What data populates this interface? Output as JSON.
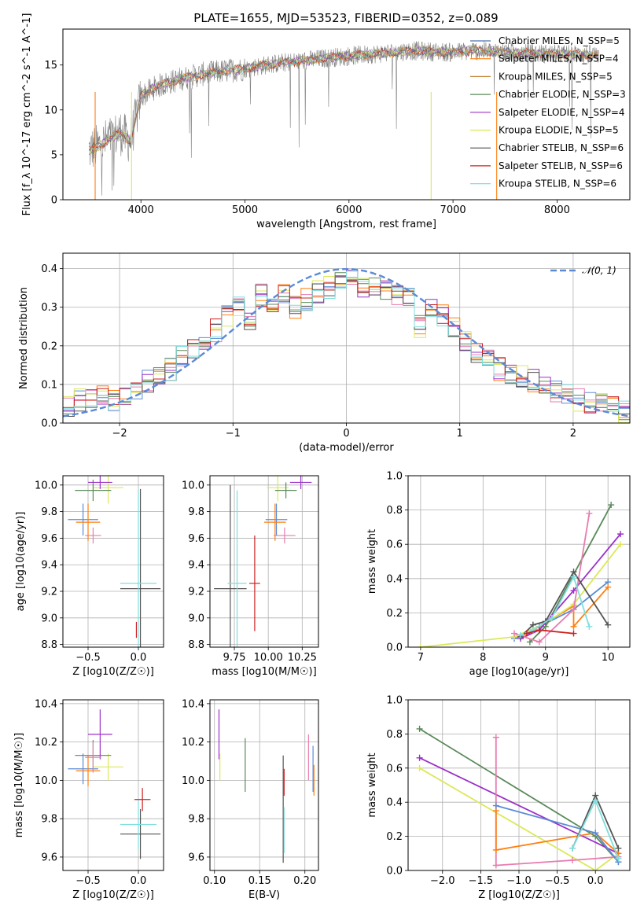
{
  "chart_data": [
    {
      "type": "line",
      "title": "PLATE=1655, MJD=53523, FIBERID=0352, z=0.089",
      "xlabel": "wavelength [Angstrom, rest frame]",
      "ylabel": "Flux [f_λ 10^-17 erg cm^-2 s^-1 A^-1]",
      "xlim": [
        3250,
        8700
      ],
      "ylim": [
        0,
        19
      ],
      "xticks": [
        4000,
        5000,
        6000,
        7000,
        8000
      ],
      "yticks": [
        0,
        5,
        10,
        15
      ],
      "legend_position": "top-right",
      "observed_spectrum": {
        "color": "#808080",
        "x": [
          3500,
          3600,
          3700,
          3800,
          3900,
          4000,
          4100,
          4200,
          4400,
          4600,
          4800,
          5000,
          5200,
          5400,
          5600,
          5800,
          6000,
          6200,
          6400,
          6600,
          6800,
          7000,
          7200,
          7400,
          7600,
          7800,
          8000,
          8200,
          8400
        ],
        "y": [
          5.5,
          6.0,
          6.8,
          7.5,
          6.5,
          11.5,
          12.3,
          12.8,
          13.5,
          14.0,
          14.3,
          14.6,
          15.0,
          15.3,
          15.5,
          15.8,
          16.0,
          16.2,
          16.4,
          16.6,
          16.5,
          16.4,
          16.6,
          16.5,
          16.4,
          16.3,
          16.2,
          16.2,
          16.1
        ]
      },
      "series": [
        {
          "name": "Chabrier MILES, N_SSP=5",
          "n_ssp": 5,
          "color": "#4c72b0"
        },
        {
          "name": "Salpeter MILES, N_SSP=4",
          "n_ssp": 4,
          "color": "#ff7f0e"
        },
        {
          "name": "Kroupa MILES, N_SSP=5",
          "n_ssp": 5,
          "color": "#c08030"
        },
        {
          "name": "Chabrier ELODIE, N_SSP=3",
          "n_ssp": 3,
          "color": "#5a8a5a"
        },
        {
          "name": "Salpeter ELODIE, N_SSP=4",
          "n_ssp": 4,
          "color": "#9b30c8"
        },
        {
          "name": "Kroupa ELODIE, N_SSP=5",
          "n_ssp": 5,
          "color": "#dce85a"
        },
        {
          "name": "Chabrier STELIB, N_SSP=6",
          "n_ssp": 6,
          "color": "#555555"
        },
        {
          "name": "Salpeter STELIB, N_SSP=6",
          "n_ssp": 6,
          "color": "#cc2020"
        },
        {
          "name": "Kroupa STELIB, N_SSP=6",
          "n_ssp": 6,
          "color": "#7fdede"
        }
      ]
    },
    {
      "type": "line",
      "xlabel": "(data-model)/error",
      "ylabel": "Normed distribution",
      "xlim": [
        -2.5,
        2.5
      ],
      "ylim": [
        0,
        0.44
      ],
      "xticks": [
        -2,
        -1,
        0,
        1,
        2
      ],
      "yticks": [
        0.0,
        0.1,
        0.2,
        0.3,
        0.4
      ],
      "legend_position": "top-right",
      "gaussian_label": "𝒩(0, 1)",
      "gaussian_color": "#5b8bd6",
      "bin_centers": [
        -2.45,
        -2.35,
        -2.25,
        -2.15,
        -2.05,
        -1.95,
        -1.85,
        -1.75,
        -1.65,
        -1.55,
        -1.45,
        -1.35,
        -1.25,
        -1.15,
        -1.05,
        -0.95,
        -0.85,
        -0.75,
        -0.65,
        -0.55,
        -0.45,
        -0.35,
        -0.25,
        -0.15,
        -0.05,
        0.05,
        0.15,
        0.25,
        0.35,
        0.45,
        0.55,
        0.65,
        0.75,
        0.85,
        0.95,
        1.05,
        1.15,
        1.25,
        1.35,
        1.45,
        1.55,
        1.65,
        1.75,
        1.85,
        1.95,
        2.05,
        2.15,
        2.25,
        2.35,
        2.45
      ],
      "histogram_mean": [
        0.04,
        0.06,
        0.07,
        0.07,
        0.06,
        0.07,
        0.08,
        0.11,
        0.13,
        0.14,
        0.17,
        0.19,
        0.22,
        0.24,
        0.28,
        0.3,
        0.27,
        0.33,
        0.31,
        0.33,
        0.3,
        0.32,
        0.34,
        0.35,
        0.36,
        0.37,
        0.35,
        0.36,
        0.34,
        0.33,
        0.32,
        0.25,
        0.3,
        0.28,
        0.25,
        0.21,
        0.18,
        0.16,
        0.14,
        0.13,
        0.12,
        0.11,
        0.1,
        0.08,
        0.07,
        0.06,
        0.05,
        0.05,
        0.04,
        0.03
      ]
    },
    {
      "type": "scatter",
      "panel": "age vs Z",
      "xlabel": "Z [log10(Z/Z☉)]",
      "ylabel": "age  [log10(age/yr)]",
      "xlim": [
        -0.75,
        0.25
      ],
      "ylim": [
        8.78,
        10.07
      ],
      "xticks": [
        -0.5,
        0.0
      ],
      "yticks": [
        8.8,
        9.0,
        9.2,
        9.4,
        9.6,
        9.8,
        10.0
      ],
      "points": [
        {
          "color": "#5b8bd6",
          "x": -0.55,
          "y": 9.74,
          "ex": 0.15,
          "ey": 0.12
        },
        {
          "color": "#ff7f0e",
          "x": -0.5,
          "y": 9.72,
          "ex": 0.12,
          "ey": 0.14
        },
        {
          "color": "#dce85a",
          "x": -0.3,
          "y": 9.98,
          "ex": 0.15,
          "ey": 0.12
        },
        {
          "color": "#5a8a5a",
          "x": -0.45,
          "y": 9.96,
          "ex": 0.18,
          "ey": 0.08
        },
        {
          "color": "#9b30c8",
          "x": -0.38,
          "y": 10.02,
          "ex": 0.12,
          "ey": 0.05
        },
        {
          "color": "#e87bb0",
          "x": -0.45,
          "y": 9.62,
          "ex": 0.08,
          "ey": 0.06
        },
        {
          "color": "#555555",
          "x": 0.02,
          "y": 9.22,
          "ex": 0.2,
          "ey": 0.75
        },
        {
          "color": "#7fdede",
          "x": 0.0,
          "y": 9.26,
          "ex": 0.18,
          "ey": 0.7
        },
        {
          "color": "#cc2020",
          "x": -0.02,
          "y": 8.91,
          "ex": 0.0,
          "ey": 0.06
        }
      ]
    },
    {
      "type": "scatter",
      "panel": "age vs mass",
      "xlabel": "mass [log10(M/M☉)]",
      "ylabel": "",
      "xlim": [
        9.57,
        10.37
      ],
      "ylim": [
        8.78,
        10.07
      ],
      "xticks": [
        9.75,
        10.0,
        10.25
      ],
      "yticks": [
        8.8,
        9.0,
        9.2,
        9.4,
        9.6,
        9.8,
        10.0
      ],
      "points": [
        {
          "color": "#5b8bd6",
          "x": 10.06,
          "y": 9.74,
          "ex": 0.08,
          "ey": 0.12
        },
        {
          "color": "#ff7f0e",
          "x": 10.05,
          "y": 9.72,
          "ex": 0.08,
          "ey": 0.14
        },
        {
          "color": "#dce85a",
          "x": 10.07,
          "y": 9.98,
          "ex": 0.08,
          "ey": 0.1
        },
        {
          "color": "#5a8a5a",
          "x": 10.13,
          "y": 9.96,
          "ex": 0.08,
          "ey": 0.06
        },
        {
          "color": "#9b30c8",
          "x": 10.24,
          "y": 10.02,
          "ex": 0.08,
          "ey": 0.05
        },
        {
          "color": "#e87bb0",
          "x": 10.12,
          "y": 9.62,
          "ex": 0.08,
          "ey": 0.06
        },
        {
          "color": "#555555",
          "x": 9.72,
          "y": 9.22,
          "ex": 0.12,
          "ey": 0.78
        },
        {
          "color": "#7fdede",
          "x": 9.77,
          "y": 9.26,
          "ex": 0.07,
          "ey": 0.7
        },
        {
          "color": "#cc2020",
          "x": 9.9,
          "y": 9.26,
          "ex": 0.04,
          "ey": 0.36
        }
      ]
    },
    {
      "type": "line",
      "panel": "mass weight vs age",
      "xlabel": "age  [log10(age/yr)]",
      "ylabel": "mass weight",
      "xlim": [
        6.8,
        10.35
      ],
      "ylim": [
        0,
        1.0
      ],
      "xticks": [
        7,
        8,
        9,
        10
      ],
      "yticks": [
        0.0,
        0.2,
        0.4,
        0.6,
        0.8,
        1.0
      ],
      "series": [
        {
          "color": "#5b8bd6",
          "x": [
            8.5,
            8.7,
            8.9,
            9.45,
            10.0
          ],
          "y": [
            0.05,
            0.08,
            0.12,
            0.22,
            0.38
          ]
        },
        {
          "color": "#ff7f0e",
          "x": [
            8.6,
            8.8,
            9.45,
            9.45,
            10.0
          ],
          "y": [
            0.06,
            0.1,
            0.24,
            0.12,
            0.35
          ]
        },
        {
          "color": "#dce85a",
          "x": [
            7.0,
            8.5,
            9.0,
            9.45,
            10.2
          ],
          "y": [
            0.0,
            0.06,
            0.14,
            0.25,
            0.6
          ]
        },
        {
          "color": "#5a8a5a",
          "x": [
            8.75,
            9.0,
            10.05
          ],
          "y": [
            0.03,
            0.12,
            0.83
          ]
        },
        {
          "color": "#9b30c8",
          "x": [
            8.6,
            8.9,
            9.45,
            10.2
          ],
          "y": [
            0.05,
            0.1,
            0.33,
            0.66
          ]
        },
        {
          "color": "#e87bb0",
          "x": [
            8.5,
            8.9,
            9.45,
            9.7
          ],
          "y": [
            0.08,
            0.03,
            0.22,
            0.78
          ]
        },
        {
          "color": "#555555",
          "x": [
            8.6,
            8.8,
            9.0,
            9.45,
            10.0
          ],
          "y": [
            0.06,
            0.13,
            0.15,
            0.44,
            0.13
          ]
        },
        {
          "color": "#7fdede",
          "x": [
            8.6,
            8.8,
            9.1,
            9.45,
            9.7
          ],
          "y": [
            0.07,
            0.1,
            0.17,
            0.41,
            0.12
          ]
        },
        {
          "color": "#cc2020",
          "x": [
            8.7,
            8.9,
            9.45
          ],
          "y": [
            0.08,
            0.1,
            0.08
          ]
        }
      ]
    },
    {
      "type": "scatter",
      "panel": "mass vs Z",
      "xlabel": "Z [log10(Z/Z☉)]",
      "ylabel": "mass [log10(M/M☉)]",
      "xlim": [
        -0.75,
        0.25
      ],
      "ylim": [
        9.53,
        10.42
      ],
      "xticks": [
        -0.5,
        0.0
      ],
      "yticks": [
        9.6,
        9.8,
        10.0,
        10.2,
        10.4
      ],
      "points": [
        {
          "color": "#5b8bd6",
          "x": -0.55,
          "y": 10.06,
          "ex": 0.15,
          "ey": 0.08
        },
        {
          "color": "#ff7f0e",
          "x": -0.5,
          "y": 10.05,
          "ex": 0.12,
          "ey": 0.08
        },
        {
          "color": "#dce85a",
          "x": -0.3,
          "y": 10.07,
          "ex": 0.15,
          "ey": 0.07
        },
        {
          "color": "#5a8a5a",
          "x": -0.45,
          "y": 10.13,
          "ex": 0.18,
          "ey": 0.08
        },
        {
          "color": "#9b30c8",
          "x": -0.38,
          "y": 10.24,
          "ex": 0.12,
          "ey": 0.13
        },
        {
          "color": "#e87bb0",
          "x": -0.45,
          "y": 10.12,
          "ex": 0.08,
          "ey": 0.08
        },
        {
          "color": "#555555",
          "x": 0.02,
          "y": 9.72,
          "ex": 0.2,
          "ey": 0.13
        },
        {
          "color": "#7fdede",
          "x": 0.0,
          "y": 9.77,
          "ex": 0.18,
          "ey": 0.13
        },
        {
          "color": "#cc2020",
          "x": 0.04,
          "y": 9.9,
          "ex": 0.08,
          "ey": 0.06
        }
      ]
    },
    {
      "type": "scatter",
      "panel": "mass vs E(B-V)",
      "xlabel": "E(B-V)",
      "ylabel": "",
      "xlim": [
        0.095,
        0.215
      ],
      "ylim": [
        9.53,
        10.42
      ],
      "xticks": [
        0.1,
        0.15,
        0.2
      ],
      "yticks": [
        9.6,
        9.8,
        10.0,
        10.2,
        10.4
      ],
      "points": [
        {
          "color": "#9b30c8",
          "x": 0.105,
          "y": 10.24,
          "ey": 0.13
        },
        {
          "color": "#dce85a",
          "x": 0.106,
          "y": 10.07,
          "ey": 0.07
        },
        {
          "color": "#5a8a5a",
          "x": 0.134,
          "y": 10.08,
          "ey": 0.14
        },
        {
          "color": "#cc2020",
          "x": 0.177,
          "y": 9.99,
          "ey": 0.07
        },
        {
          "color": "#555555",
          "x": 0.176,
          "y": 9.85,
          "ey": 0.28
        },
        {
          "color": "#7fdede",
          "x": 0.177,
          "y": 9.74,
          "ey": 0.12
        },
        {
          "color": "#e87bb0",
          "x": 0.204,
          "y": 10.12,
          "ey": 0.12
        },
        {
          "color": "#ff7f0e",
          "x": 0.21,
          "y": 10.0,
          "ey": 0.08
        },
        {
          "color": "#5b8bd6",
          "x": 0.209,
          "y": 10.06,
          "ey": 0.12
        }
      ]
    },
    {
      "type": "line",
      "panel": "mass weight vs Z",
      "xlabel": "Z [log10(Z/Z☉)]",
      "ylabel": "mass weight",
      "xlim": [
        -2.45,
        0.45
      ],
      "ylim": [
        0,
        1.0
      ],
      "xticks": [
        -2.0,
        -1.5,
        -1.0,
        -0.5,
        0.0
      ],
      "yticks": [
        0.0,
        0.2,
        0.4,
        0.6,
        0.8,
        1.0
      ],
      "series": [
        {
          "color": "#5a8a5a",
          "x": [
            -2.3,
            0.0,
            0.3
          ],
          "y": [
            0.83,
            0.2,
            0.05
          ]
        },
        {
          "color": "#9b30c8",
          "x": [
            -2.3,
            0.3
          ],
          "y": [
            0.66,
            0.1
          ]
        },
        {
          "color": "#dce85a",
          "x": [
            -2.3,
            0.0,
            0.3
          ],
          "y": [
            0.6,
            0.0,
            0.1
          ]
        },
        {
          "color": "#e87bb0",
          "x": [
            -1.3,
            -1.3,
            -0.3,
            0.3
          ],
          "y": [
            0.78,
            0.03,
            0.06,
            0.08
          ]
        },
        {
          "color": "#ff7f0e",
          "x": [
            -1.3,
            -1.3,
            0.0,
            0.3
          ],
          "y": [
            0.35,
            0.12,
            0.22,
            0.1
          ]
        },
        {
          "color": "#5b8bd6",
          "x": [
            -1.3,
            0.0,
            0.3
          ],
          "y": [
            0.38,
            0.22,
            0.05
          ]
        },
        {
          "color": "#555555",
          "x": [
            -0.3,
            0.0,
            0.3
          ],
          "y": [
            0.13,
            0.44,
            0.13
          ]
        },
        {
          "color": "#7fdede",
          "x": [
            -0.3,
            0.0,
            0.3
          ],
          "y": [
            0.13,
            0.41,
            0.07
          ]
        }
      ]
    }
  ]
}
